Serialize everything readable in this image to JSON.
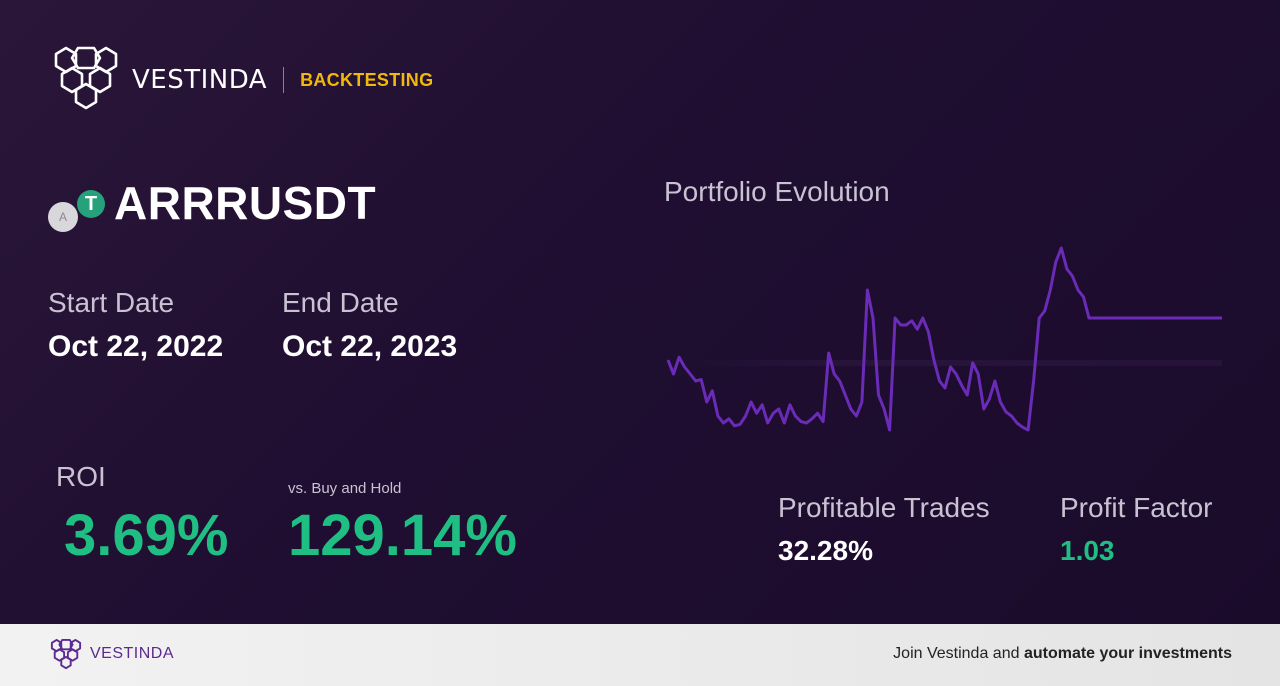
{
  "brand": {
    "name": "VESTINDA",
    "tag": "BACKTESTING"
  },
  "pair": {
    "symbol": "ARRRUSDT",
    "base_icon_letter": "A",
    "quote_icon_letter": "T"
  },
  "dates": {
    "start_label": "Start Date",
    "start_value": "Oct 22, 2022",
    "end_label": "End Date",
    "end_value": "Oct 22, 2023"
  },
  "roi": {
    "label": "ROI",
    "value": "3.69%"
  },
  "buy_hold": {
    "label": "vs. Buy and Hold",
    "value": "129.14%"
  },
  "stats": {
    "profitable_label": "Profitable Trades",
    "profitable_value": "32.28%",
    "factor_label": "Profit Factor",
    "factor_value": "1.03"
  },
  "chart_title": "Portfolio Evolution",
  "chart_data": {
    "type": "line",
    "title": "Portfolio Evolution",
    "x": [
      0,
      1,
      2,
      3,
      4,
      5,
      6,
      7,
      8,
      9,
      10,
      11,
      12,
      13,
      14,
      15,
      16,
      17,
      18,
      19,
      20,
      21,
      22,
      23,
      24,
      25,
      26,
      27,
      28,
      29,
      30,
      31,
      32,
      33,
      34,
      35,
      36,
      37,
      38,
      39,
      40,
      41,
      42,
      43,
      44,
      45,
      46,
      47,
      48,
      49,
      50,
      51,
      52,
      53,
      54,
      55,
      56,
      57,
      58,
      59,
      60,
      61,
      62,
      63,
      64,
      65,
      66,
      67,
      68,
      69,
      70,
      71,
      72,
      73,
      74,
      75,
      76,
      77,
      78,
      79,
      80,
      81,
      82,
      83,
      84,
      85,
      86,
      87,
      88,
      89,
      90,
      91,
      92,
      93,
      94,
      95,
      96,
      97,
      98,
      99,
      100
    ],
    "values": [
      1.0,
      0.9,
      1.02,
      0.95,
      0.9,
      0.85,
      0.86,
      0.7,
      0.78,
      0.6,
      0.55,
      0.58,
      0.53,
      0.54,
      0.6,
      0.7,
      0.62,
      0.68,
      0.55,
      0.62,
      0.65,
      0.55,
      0.68,
      0.6,
      0.56,
      0.55,
      0.58,
      0.62,
      0.56,
      1.05,
      0.9,
      0.85,
      0.75,
      0.65,
      0.6,
      0.7,
      1.5,
      1.3,
      0.75,
      0.65,
      0.5,
      1.3,
      1.25,
      1.25,
      1.28,
      1.22,
      1.3,
      1.2,
      1.0,
      0.85,
      0.8,
      0.95,
      0.9,
      0.82,
      0.75,
      0.98,
      0.9,
      0.65,
      0.72,
      0.85,
      0.7,
      0.63,
      0.6,
      0.55,
      0.52,
      0.5,
      0.85,
      1.3,
      1.35,
      1.5,
      1.7,
      1.8,
      1.65,
      1.6,
      1.5,
      1.45,
      1.3,
      1.3,
      1.3,
      1.3,
      1.3,
      1.3,
      1.3,
      1.3,
      1.3,
      1.3,
      1.3,
      1.3,
      1.3,
      1.3,
      1.3,
      1.3,
      1.3,
      1.3,
      1.3,
      1.3,
      1.3,
      1.3,
      1.3,
      1.3,
      1.3
    ],
    "baseline": 1.0,
    "color": "#6a2cb8"
  },
  "footer": {
    "brand": "VESTINDA",
    "cta_plain": "Join Vestinda and ",
    "cta_bold": "automate your investments"
  },
  "colors": {
    "accent_gold": "#f0b90b",
    "positive_green": "#1fbf83",
    "brand_purple": "#5b2a91",
    "line_purple": "#6a2cb8"
  },
  "icons": {
    "logo": "vestinda-hex-logo-icon"
  }
}
